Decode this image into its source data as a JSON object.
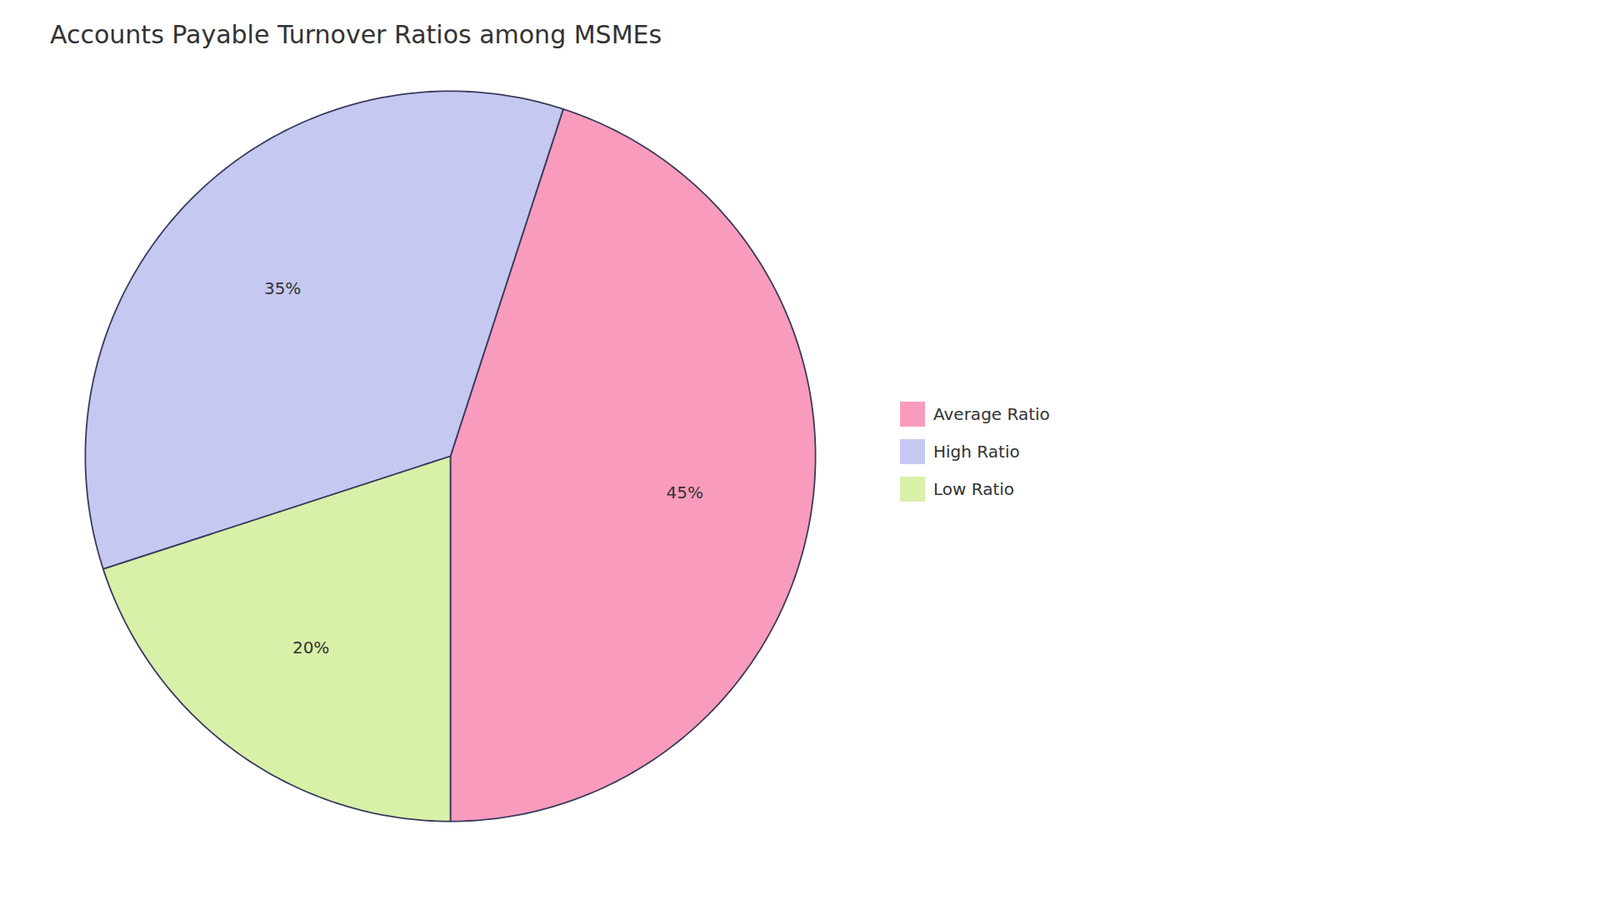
{
  "chart_data": {
    "type": "pie",
    "title": "Accounts Payable Turnover Ratios among MSMEs",
    "categories": [
      "Average Ratio",
      "High Ratio",
      "Low Ratio"
    ],
    "values": [
      45,
      35,
      20
    ],
    "value_labels": [
      "45%",
      "35%",
      "20%"
    ],
    "colors": [
      "#F99BBD",
      "#C5C8F0",
      "#D8F0A8"
    ],
    "data_labels": true,
    "legend": "right"
  }
}
